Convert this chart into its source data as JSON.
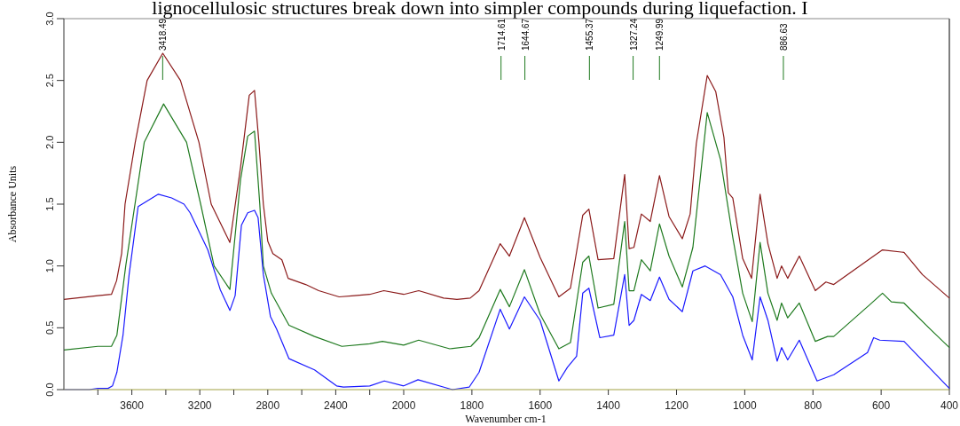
{
  "chart_data": [
    {
      "type": "line",
      "ylabel": "Absorbance Units",
      "annotations": [
        "lignocellulosic structures break down into simpler compounds during liquefaction. I",
        {
          "text": "3418.49",
          "x": 3418.49
        }
      ],
      "xlim": [
        4000,
        2000
      ],
      "ylim": [
        0,
        3.0
      ],
      "xticks": [
        {
          "value": 3800,
          "label": null
        },
        3600,
        {
          "value": 3400,
          "label": null
        },
        3200,
        {
          "value": 3000,
          "label": null
        },
        2800,
        {
          "value": 2600,
          "label": null
        },
        2400,
        {
          "value": 2200,
          "label": null
        },
        2000
      ],
      "yticks": [
        {
          "value": 0,
          "label": "0.0"
        },
        0.5,
        {
          "value": 1,
          "label": "1.0"
        },
        1.5,
        {
          "value": 2,
          "label": "2.0"
        },
        2.5,
        {
          "value": 3,
          "label": "3.0"
        }
      ],
      "marker": "none",
      "line_style": "solid",
      "series": [
        {
          "color": "#8b1a1a",
          "x": [
            4000,
            3800,
            3720,
            3690,
            3660,
            3640,
            3580,
            3510,
            3418,
            3314,
            3205,
            3133,
            3023,
            2960,
            2909,
            2878,
            2852,
            2826,
            2800,
            2770,
            2717,
            2680,
            2577,
            2500,
            2380,
            2290,
            2200,
            2117,
            2000
          ],
          "values": [
            0.73,
            0.76,
            0.77,
            0.88,
            1.1,
            1.5,
            2.0,
            2.5,
            2.72,
            2.5,
            2.0,
            1.5,
            1.19,
            1.8,
            2.38,
            2.42,
            2.0,
            1.5,
            1.2,
            1.1,
            1.05,
            0.9,
            0.85,
            0.8,
            0.75,
            0.76,
            0.77,
            0.8,
            0.77
          ]
        },
        {
          "color": "#1f7a1f",
          "x": [
            4000,
            3800,
            3720,
            3688,
            3636,
            3527,
            3413,
            3278,
            3195,
            3116,
            3023,
            2960,
            2918,
            2878,
            2847,
            2826,
            2779,
            2675,
            2525,
            2364,
            2200,
            2125,
            2000
          ],
          "values": [
            0.32,
            0.35,
            0.35,
            0.44,
            1.0,
            2.0,
            2.31,
            2.0,
            1.5,
            1.0,
            0.81,
            1.7,
            2.05,
            2.09,
            1.5,
            1.0,
            0.78,
            0.52,
            0.43,
            0.35,
            0.37,
            0.39,
            0.36
          ]
        },
        {
          "color": "#1a1aff",
          "x": [
            4000,
            3850,
            3800,
            3740,
            3714,
            3688,
            3652,
            3616,
            3563,
            3444,
            3366,
            3293,
            3257,
            3153,
            3080,
            3023,
            2992,
            2955,
            2918,
            2878,
            2857,
            2826,
            2784,
            2748,
            2675,
            2525,
            2395,
            2355,
            2200,
            2114,
            2000
          ],
          "values": [
            0.0,
            0.0,
            0.01,
            0.01,
            0.03,
            0.14,
            0.44,
            0.93,
            1.48,
            1.58,
            1.55,
            1.5,
            1.43,
            1.13,
            0.81,
            0.64,
            0.76,
            1.33,
            1.43,
            1.45,
            1.39,
            0.93,
            0.59,
            0.49,
            0.25,
            0.16,
            0.03,
            0.02,
            0.03,
            0.07,
            0.03
          ]
        }
      ]
    },
    {
      "type": "line",
      "xlabel": "Wavenumber cm-1",
      "annotations": [
        {
          "text": "1714.61",
          "x": 1714.61
        },
        {
          "text": "1644.67",
          "x": 1644.67
        },
        {
          "text": "1455.37",
          "x": 1455.37
        },
        {
          "text": "1327.24",
          "x": 1327.24
        },
        {
          "text": "1249.99",
          "x": 1249.99
        },
        {
          "text": "886.63",
          "x": 886.63
        }
      ],
      "xlim": [
        2000,
        400
      ],
      "ylim": [
        0,
        3.0
      ],
      "xticks": [
        1800,
        1600,
        1400,
        1200,
        1000,
        800,
        600,
        400
      ],
      "tick_labels": "x",
      "marker": "none",
      "line_style": "solid",
      "series": [
        {
          "color": "#8b1a1a",
          "x": [
            2000,
            1956,
            1883,
            1844,
            1805,
            1779,
            1717,
            1690,
            1646,
            1600,
            1545,
            1511,
            1475,
            1457,
            1430,
            1384,
            1352,
            1339,
            1325,
            1303,
            1277,
            1250,
            1222,
            1183,
            1160,
            1142,
            1110,
            1085,
            1061,
            1048,
            1035,
            1006,
            980,
            955,
            932,
            905,
            892,
            874,
            840,
            793,
            762,
            739,
            632,
            596,
            533,
            479,
            400
          ],
          "values": [
            0.77,
            0.8,
            0.74,
            0.73,
            0.74,
            0.8,
            1.18,
            1.08,
            1.39,
            1.07,
            0.75,
            0.82,
            1.41,
            1.46,
            1.05,
            1.06,
            1.74,
            1.14,
            1.15,
            1.42,
            1.36,
            1.73,
            1.4,
            1.22,
            1.42,
            1.99,
            2.54,
            2.41,
            2.04,
            1.59,
            1.55,
            1.06,
            0.9,
            1.58,
            1.18,
            0.9,
            1.0,
            0.9,
            1.08,
            0.8,
            0.87,
            0.85,
            1.06,
            1.13,
            1.11,
            0.93,
            0.74
          ]
        },
        {
          "color": "#1f7a1f",
          "x": [
            2000,
            1956,
            1865,
            1803,
            1779,
            1717,
            1690,
            1646,
            1600,
            1545,
            1511,
            1475,
            1457,
            1430,
            1384,
            1352,
            1339,
            1325,
            1303,
            1277,
            1250,
            1222,
            1183,
            1152,
            1110,
            1071,
            1035,
            1006,
            978,
            955,
            932,
            905,
            892,
            874,
            840,
            793,
            757,
            739,
            632,
            596,
            570,
            533,
            460,
            400
          ],
          "values": [
            0.36,
            0.4,
            0.33,
            0.35,
            0.42,
            0.81,
            0.67,
            0.97,
            0.61,
            0.33,
            0.38,
            1.03,
            1.08,
            0.66,
            0.69,
            1.36,
            0.8,
            0.8,
            1.05,
            0.96,
            1.34,
            1.08,
            0.83,
            1.15,
            2.24,
            1.86,
            1.23,
            0.78,
            0.55,
            1.19,
            0.78,
            0.56,
            0.7,
            0.58,
            0.7,
            0.39,
            0.43,
            0.43,
            0.69,
            0.78,
            0.71,
            0.7,
            0.5,
            0.34
          ]
        },
        {
          "color": "#1a1aff",
          "x": [
            2000,
            1958,
            1857,
            1808,
            1779,
            1717,
            1690,
            1646,
            1600,
            1545,
            1520,
            1493,
            1475,
            1457,
            1425,
            1384,
            1352,
            1339,
            1325,
            1303,
            1277,
            1250,
            1222,
            1183,
            1152,
            1116,
            1071,
            1035,
            1006,
            978,
            955,
            932,
            905,
            892,
            874,
            840,
            788,
            739,
            640,
            622,
            604,
            533,
            400
          ],
          "values": [
            0.03,
            0.08,
            0.0,
            0.02,
            0.14,
            0.65,
            0.49,
            0.75,
            0.56,
            0.07,
            0.18,
            0.27,
            0.78,
            0.82,
            0.42,
            0.44,
            0.93,
            0.52,
            0.56,
            0.77,
            0.72,
            0.91,
            0.73,
            0.63,
            0.96,
            1.0,
            0.93,
            0.75,
            0.44,
            0.24,
            0.75,
            0.56,
            0.23,
            0.34,
            0.24,
            0.4,
            0.07,
            0.12,
            0.3,
            0.42,
            0.4,
            0.39,
            0.01
          ]
        }
      ]
    }
  ]
}
